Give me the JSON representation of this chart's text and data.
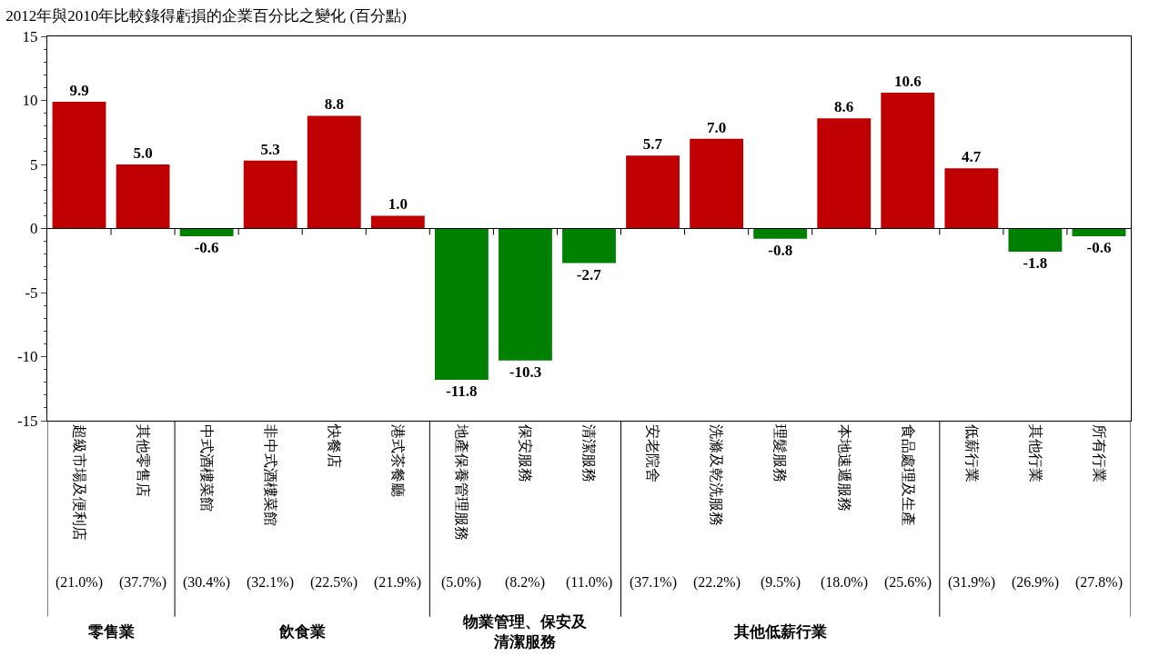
{
  "chart_data": {
    "type": "bar",
    "title": "2012年與2010年比較錄得虧損的企業百分比之變化 (百分點)",
    "categories": [
      "超級市場及便利店",
      "其他零售店",
      "中式酒樓菜館",
      "非中式酒樓菜館",
      "快餐店",
      "港式茶餐廳",
      "地產保養管理服務",
      "保安服務",
      "清潔服務",
      "安老院舍",
      "洗滌及乾洗服務",
      "理髮服務",
      "本地速遞服務",
      "食品處理及生產",
      "低薪行業",
      "其他行業",
      "所有行業"
    ],
    "values": [
      9.9,
      5.0,
      -0.6,
      5.3,
      8.8,
      1.0,
      -11.8,
      -10.3,
      -2.7,
      5.7,
      7.0,
      -0.8,
      8.6,
      10.6,
      4.7,
      -1.8,
      -0.6
    ],
    "colors": [
      "#c00000",
      "#c00000",
      "#008000",
      "#c00000",
      "#c00000",
      "#c00000",
      "#008000",
      "#008000",
      "#008000",
      "#c00000",
      "#c00000",
      "#008000",
      "#c00000",
      "#c00000",
      "#c00000",
      "#008000",
      "#008000"
    ],
    "ylim": [
      -15,
      15
    ],
    "yticks": [
      -15,
      -10,
      -5,
      0,
      5,
      10,
      15
    ],
    "value_labels": [
      "9.9",
      "5.0",
      "-0.6",
      "5.3",
      "8.8",
      "1.0",
      "-11.8",
      "-10.3",
      "-2.7",
      "5.7",
      "7.0",
      "-0.8",
      "8.6",
      "10.6",
      "4.7",
      "-1.8",
      "-0.6"
    ],
    "annotations": [
      "(21.0%)",
      "(37.7%)",
      "(30.4%)",
      "(32.1%)",
      "(22.5%)",
      "(21.9%)",
      "(5.0%)",
      "(8.2%)",
      "(11.0%)",
      "(37.1%)",
      "(22.2%)",
      "(9.5%)",
      "(18.0%)",
      "(25.6%)",
      "(31.9%)",
      "(26.9%)",
      "(27.8%)",
      "零售業",
      "飲食業",
      "物業管理、保安及清潔服務",
      "其他低薪行業"
    ]
  }
}
